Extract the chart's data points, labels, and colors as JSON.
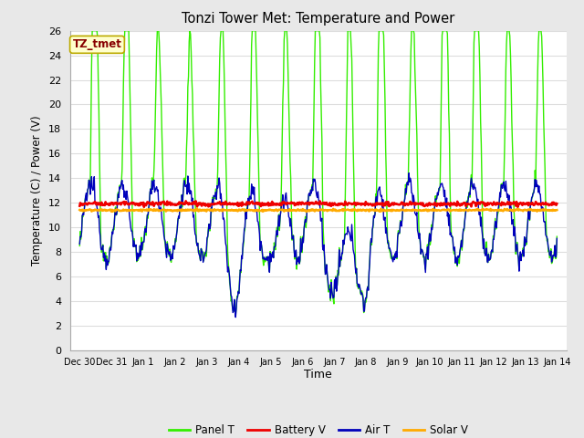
{
  "title": "Tonzi Tower Met: Temperature and Power",
  "xlabel": "Time",
  "ylabel": "Temperature (C) / Power (V)",
  "ylim": [
    0,
    26
  ],
  "yticks": [
    0,
    2,
    4,
    6,
    8,
    10,
    12,
    14,
    16,
    18,
    20,
    22,
    24,
    26
  ],
  "xtick_labels": [
    "Dec 30",
    "Dec 31",
    "Jan 1",
    "Jan 2",
    "Jan 3",
    "Jan 4",
    "Jan 5",
    "Jan 6",
    "Jan 7",
    "Jan 8",
    "Jan 9",
    "Jan 10",
    "Jan 11",
    "Jan 12",
    "Jan 13",
    "Jan 14"
  ],
  "xtick_positions": [
    0,
    1,
    2,
    3,
    4,
    5,
    6,
    7,
    8,
    9,
    10,
    11,
    12,
    13,
    14,
    15
  ],
  "xlim_start": -0.3,
  "xlim_end": 15.3,
  "fig_bg_color": "#e8e8e8",
  "plot_bg_color": "#ffffff",
  "grid_color": "#dddddd",
  "annotation_text": "TZ_tmet",
  "annotation_bg": "#ffffcc",
  "annotation_border": "#bbaa00",
  "annotation_text_color": "#880000",
  "battery_v": 11.9,
  "solar_v": 11.4,
  "panel_color": "#33ee00",
  "battery_color": "#ee0000",
  "air_color": "#0000bb",
  "solar_color": "#ffaa00",
  "legend_labels": [
    "Panel T",
    "Battery V",
    "Air T",
    "Solar V"
  ],
  "seed": 12345
}
